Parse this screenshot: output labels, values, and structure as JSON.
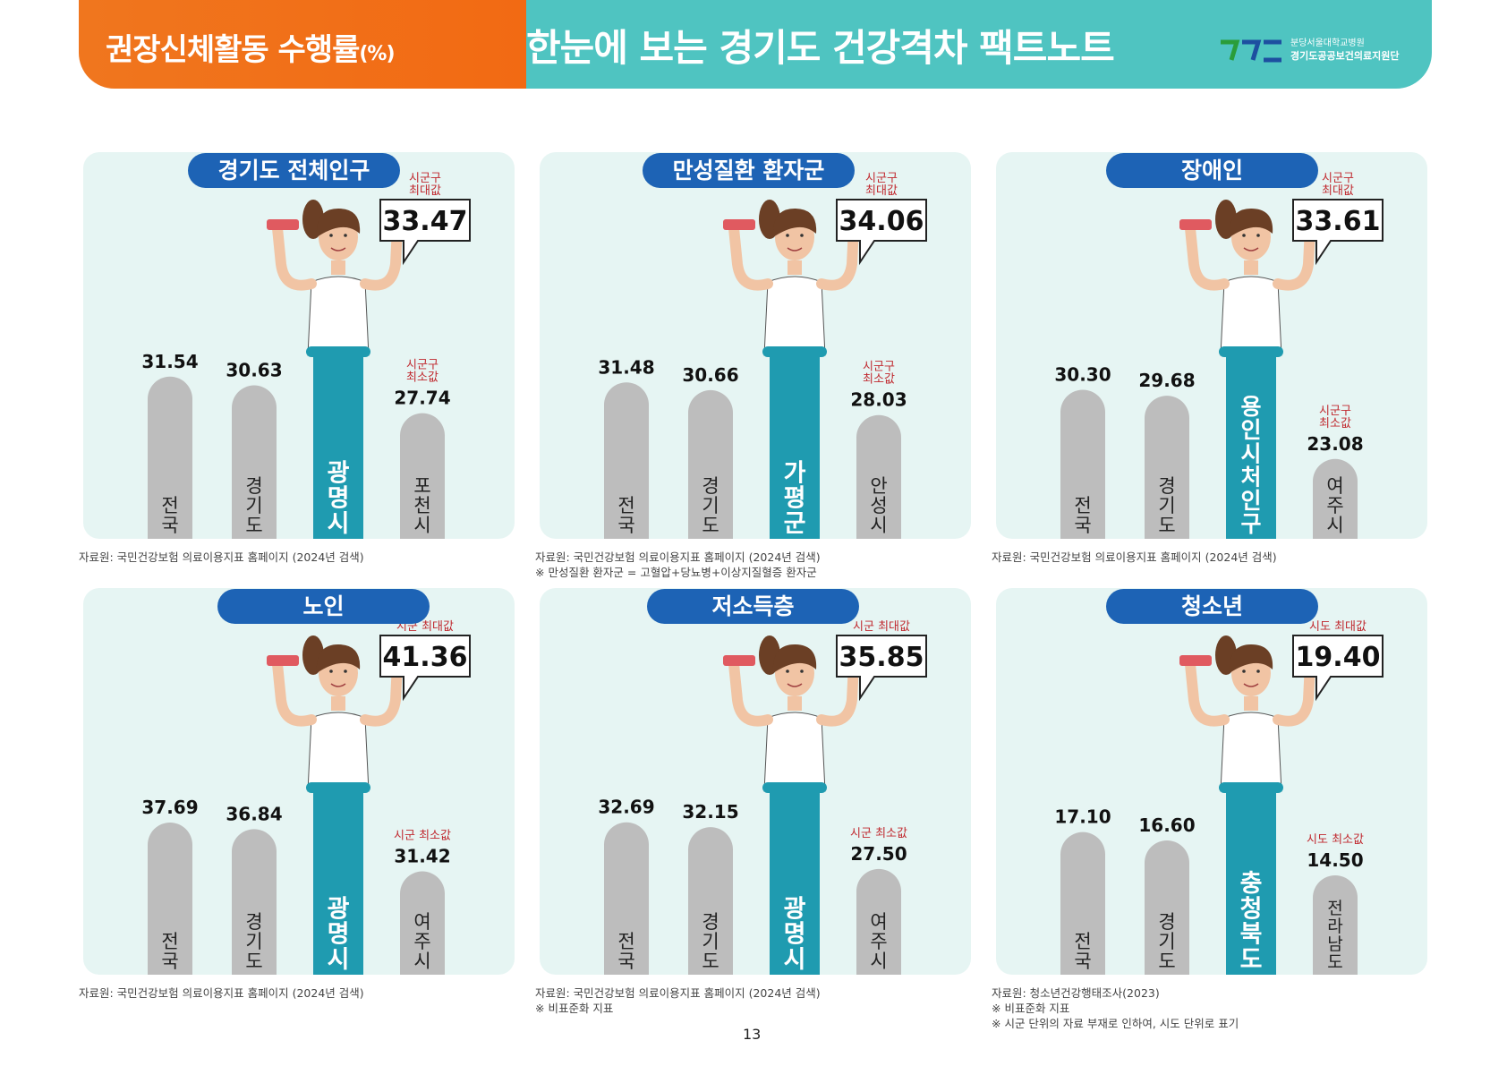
{
  "header": {
    "left_title": "권장신체활동 수행률",
    "left_unit": "(%)",
    "right_title": "한눈에 보는 경기도 건강격차 팩트노트",
    "logo_line1": "분당서울대학교병원",
    "logo_line2": "경기도공공보건의료지원단",
    "colors": {
      "orange": "#f26a13",
      "teal": "#4fc4c1",
      "pill": "#1d63b5",
      "highlight_bar": "#1f9bb0",
      "gray_bar": "#bdbdbd",
      "red_label": "#c0282e"
    }
  },
  "page_number": "13",
  "chart_data": [
    {
      "type": "bar",
      "group": "경기도 전체인구",
      "categories": [
        "전국",
        "경기도",
        "광명시",
        "포천시"
      ],
      "values": [
        31.54,
        30.63,
        33.47,
        27.74
      ],
      "value_labels": [
        "31.54",
        "30.63",
        "33.47",
        "27.74"
      ],
      "highlight_index": 2,
      "max_label": "시군구\n최대값",
      "min_label": "시군구\n최소값",
      "source": [
        "자료원: 국민건강보험 의료이용지표 홈페이지 (2024년 검색)"
      ]
    },
    {
      "type": "bar",
      "group": "만성질환 환자군",
      "categories": [
        "전국",
        "경기도",
        "가평군",
        "안성시"
      ],
      "values": [
        31.48,
        30.66,
        34.06,
        28.03
      ],
      "value_labels": [
        "31.48",
        "30.66",
        "34.06",
        "28.03"
      ],
      "highlight_index": 2,
      "max_label": "시군구\n최대값",
      "min_label": "시군구\n최소값",
      "source": [
        "자료원: 국민건강보험 의료이용지표 홈페이지 (2024년 검색)",
        "※ 만성질환 환자군 = 고혈압+당뇨병+이상지질혈증 환자군"
      ]
    },
    {
      "type": "bar",
      "group": "장애인",
      "categories": [
        "전국",
        "경기도",
        "용인시처인구",
        "여주시"
      ],
      "values": [
        30.3,
        29.68,
        33.61,
        23.08
      ],
      "value_labels": [
        "30.30",
        "29.68",
        "33.61",
        "23.08"
      ],
      "highlight_index": 2,
      "max_label": "시군구\n최대값",
      "min_label": "시군구\n최소값",
      "source": [
        "자료원: 국민건강보험 의료이용지표 홈페이지 (2024년 검색)"
      ]
    },
    {
      "type": "bar",
      "group": "노인",
      "categories": [
        "전국",
        "경기도",
        "광명시",
        "여주시"
      ],
      "values": [
        37.69,
        36.84,
        41.36,
        31.42
      ],
      "value_labels": [
        "37.69",
        "36.84",
        "41.36",
        "31.42"
      ],
      "highlight_index": 2,
      "max_label": "시군 최대값",
      "min_label": "시군 최소값",
      "source": [
        "자료원: 국민건강보험 의료이용지표 홈페이지 (2024년 검색)"
      ]
    },
    {
      "type": "bar",
      "group": "저소득층",
      "categories": [
        "전국",
        "경기도",
        "광명시",
        "여주시"
      ],
      "values": [
        32.69,
        32.15,
        35.85,
        27.5
      ],
      "value_labels": [
        "32.69",
        "32.15",
        "35.85",
        "27.50"
      ],
      "highlight_index": 2,
      "max_label": "시군 최대값",
      "min_label": "시군 최소값",
      "source": [
        "자료원: 국민건강보험 의료이용지표 홈페이지 (2024년 검색)",
        "※ 비표준화 지표"
      ]
    },
    {
      "type": "bar",
      "group": "청소년",
      "categories": [
        "전국",
        "경기도",
        "충청북도",
        "전라남도"
      ],
      "values": [
        17.1,
        16.6,
        19.4,
        14.5
      ],
      "value_labels": [
        "17.10",
        "16.60",
        "19.40",
        "14.50"
      ],
      "highlight_index": 2,
      "max_label": "시도 최대값",
      "min_label": "시도 최소값",
      "source": [
        "자료원: 청소년건강행태조사(2023)",
        "※ 비표준화 지표",
        "※ 시군 단위의 자료 부재로 인하여, 시도 단위로 표기"
      ]
    }
  ]
}
